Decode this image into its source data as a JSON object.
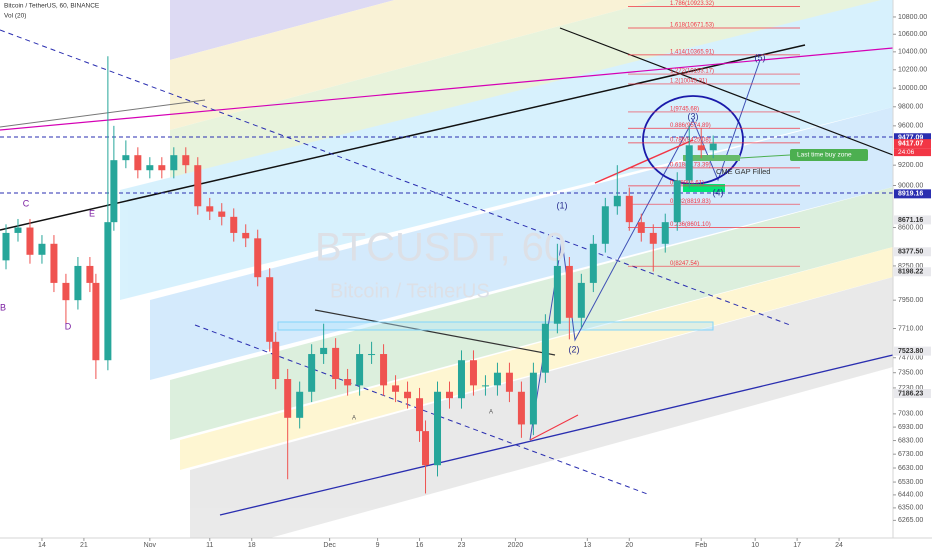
{
  "chart_data": {
    "type": "candlestick",
    "header": "Bitcoin / TetherUS, 60, BINANCE",
    "indicator": "Vol (20)",
    "watermark": {
      "symbol": "BTCUSDT, 60",
      "name": "Bitcoin / TetherUS"
    },
    "log_scale": true,
    "grid": false,
    "up_color": "#26a69a",
    "down_color": "#ef5350",
    "xlim": [
      "2019-10-07",
      "2020-03-04"
    ],
    "ylim": [
      6200,
      11000
    ],
    "xticks": [
      {
        "value": "2019-10-14",
        "label": "14"
      },
      {
        "value": "2019-10-21",
        "label": "21"
      },
      {
        "value": "2019-11-01",
        "label": "Nov"
      },
      {
        "value": "2019-11-11",
        "label": "11"
      },
      {
        "value": "2019-11-18",
        "label": "18"
      },
      {
        "value": "2019-12-01",
        "label": "Dec"
      },
      {
        "value": "2019-12-09",
        "label": "9"
      },
      {
        "value": "2019-12-16",
        "label": "16"
      },
      {
        "value": "2019-12-23",
        "label": "23"
      },
      {
        "value": "2020-01-01",
        "label": "2020"
      },
      {
        "value": "2020-01-13",
        "label": "13"
      },
      {
        "value": "2020-01-20",
        "label": "20"
      },
      {
        "value": "2020-02-01",
        "label": "Feb"
      },
      {
        "value": "2020-02-10",
        "label": "10"
      },
      {
        "value": "2020-02-17",
        "label": "17"
      },
      {
        "value": "2020-02-24",
        "label": "24"
      }
    ],
    "yticks": [
      {
        "value": 10800,
        "label": "10800.00"
      },
      {
        "value": 10600,
        "label": "10600.00"
      },
      {
        "value": 10400,
        "label": "10400.00"
      },
      {
        "value": 10200,
        "label": "10200.00"
      },
      {
        "value": 10000,
        "label": "10000.00"
      },
      {
        "value": 9800,
        "label": "9800.00"
      },
      {
        "value": 9600,
        "label": "9600.00"
      },
      {
        "value": 9200,
        "label": "9200.00"
      },
      {
        "value": 9000,
        "label": "9000.00"
      },
      {
        "value": 8600,
        "label": "8600.00"
      },
      {
        "value": 8250,
        "label": "8250.00"
      },
      {
        "value": 7950,
        "label": "7950.00"
      },
      {
        "value": 7710,
        "label": "7710.00"
      },
      {
        "value": 7470,
        "label": "7470.00"
      },
      {
        "value": 7350,
        "label": "7350.00"
      },
      {
        "value": 7230,
        "label": "7230.00"
      },
      {
        "value": 7030,
        "label": "7030.00"
      },
      {
        "value": 6930,
        "label": "6930.00"
      },
      {
        "value": 6830,
        "label": "6830.00"
      },
      {
        "value": 6730,
        "label": "6730.00"
      },
      {
        "value": 6630,
        "label": "6630.00"
      },
      {
        "value": 6530,
        "label": "6530.00"
      },
      {
        "value": 6440,
        "label": "6440.00"
      },
      {
        "value": 6350,
        "label": "6350.00"
      },
      {
        "value": 6265,
        "label": "6265.00"
      }
    ],
    "price_markers": [
      {
        "value": 9477.09,
        "label": "9477.09",
        "color": "#2a2eb0"
      },
      {
        "value": 9417.07,
        "label": "9417.07",
        "color": "#f23645"
      },
      {
        "value": 8919.16,
        "label": "8919.16",
        "color": "#2a2eb0"
      },
      {
        "value": 8671.16,
        "label": "8671.16",
        "color": "#e8e8ec"
      },
      {
        "value": 8377.5,
        "label": "8377.50",
        "color": "#e8e8ec"
      },
      {
        "value": 8198.22,
        "label": "8198.22",
        "color": "#e8e8ec"
      },
      {
        "value": 7523.8,
        "label": "7523.80",
        "color": "#e8e8ec"
      },
      {
        "value": 7186.23,
        "label": "7186.23",
        "color": "#e8e8ec"
      }
    ],
    "countdown": "24:06",
    "fib_levels": [
      {
        "price": 10923.32,
        "label": "1.786(10923.32)"
      },
      {
        "price": 10671.53,
        "label": "1.618(10671.53)"
      },
      {
        "price": 10365.91,
        "label": "1.414(10365.91)"
      },
      {
        "price": 10153.17,
        "label": "1.272(10153.17)"
      },
      {
        "price": 10045.31,
        "label": "1.2(10045.31)"
      },
      {
        "price": 9745.68,
        "label": "1(9745.68)"
      },
      {
        "price": 9574.89,
        "label": "0.886(9574.89)"
      },
      {
        "price": 9425.08,
        "label": "0.786(9425.08)"
      },
      {
        "price": 9173.39,
        "label": "0.618(9173.39)"
      },
      {
        "price": 8996.61,
        "label": "0.5(8996.61)"
      },
      {
        "price": 8819.83,
        "label": "0.382(8819.83)"
      },
      {
        "price": 8601.1,
        "label": "0.236(8601.10)"
      },
      {
        "price": 8247.54,
        "label": "0(8247.54)"
      }
    ],
    "wave_labels": [
      "(1)",
      "(2)",
      "(3)",
      "(4)",
      "(5)",
      "B",
      "C",
      "D",
      "E",
      "A",
      "A"
    ],
    "notes": [
      "Last time buy zone",
      "CME GAP Filled"
    ],
    "x": [
      "2019-10-08",
      "2019-10-10",
      "2019-10-12",
      "2019-10-14",
      "2019-10-16",
      "2019-10-18",
      "2019-10-20",
      "2019-10-22",
      "2019-10-23",
      "2019-10-25",
      "2019-10-26",
      "2019-10-28",
      "2019-10-30",
      "2019-11-01",
      "2019-11-03",
      "2019-11-05",
      "2019-11-07",
      "2019-11-09",
      "2019-11-11",
      "2019-11-13",
      "2019-11-15",
      "2019-11-17",
      "2019-11-19",
      "2019-11-21",
      "2019-11-22",
      "2019-11-24",
      "2019-11-26",
      "2019-11-28",
      "2019-11-30",
      "2019-12-02",
      "2019-12-04",
      "2019-12-06",
      "2019-12-08",
      "2019-12-10",
      "2019-12-12",
      "2019-12-14",
      "2019-12-16",
      "2019-12-17",
      "2019-12-19",
      "2019-12-21",
      "2019-12-23",
      "2019-12-25",
      "2019-12-27",
      "2019-12-29",
      "2019-12-31",
      "2020-01-02",
      "2020-01-04",
      "2020-01-06",
      "2020-01-08",
      "2020-01-10",
      "2020-01-12",
      "2020-01-14",
      "2020-01-16",
      "2020-01-18",
      "2020-01-20",
      "2020-01-22",
      "2020-01-24",
      "2020-01-26",
      "2020-01-28",
      "2020-01-30",
      "2020-02-01",
      "2020-02-03"
    ],
    "open": [
      8300,
      8550,
      8600,
      8350,
      8450,
      8100,
      7950,
      8250,
      8100,
      7450,
      8650,
      9250,
      9300,
      9150,
      9200,
      9150,
      9300,
      9200,
      8800,
      8750,
      8700,
      8550,
      8500,
      8150,
      7600,
      7300,
      7000,
      7200,
      7500,
      7550,
      7300,
      7250,
      7500,
      7500,
      7250,
      7200,
      7150,
      6900,
      6650,
      7200,
      7150,
      7450,
      7250,
      7250,
      7350,
      7200,
      6950,
      7350,
      7750,
      8250,
      7800,
      8100,
      8450,
      8800,
      8900,
      8650,
      8550,
      8450,
      8650,
      9050,
      9400,
      9350
    ],
    "high": [
      8630,
      8680,
      8680,
      8530,
      8530,
      8180,
      8330,
      8330,
      8180,
      10350,
      9600,
      9450,
      9380,
      9280,
      9280,
      9380,
      9380,
      9280,
      8880,
      8830,
      8780,
      8630,
      8580,
      8230,
      7680,
      7380,
      7280,
      7580,
      7750,
      7630,
      7380,
      7580,
      7600,
      7580,
      7330,
      7280,
      7230,
      6980,
      7280,
      7280,
      7530,
      7530,
      7330,
      7430,
      7430,
      7280,
      7430,
      7830,
      8450,
      8330,
      8180,
      8530,
      8880,
      9200,
      8980,
      8730,
      8630,
      8730,
      9130,
      9600,
      9580,
      9500
    ],
    "low": [
      8220,
      8470,
      8270,
      8270,
      8020,
      7750,
      7870,
      8020,
      7300,
      7370,
      8570,
      9170,
      9070,
      9070,
      9070,
      9070,
      9120,
      8720,
      8670,
      8620,
      8470,
      8420,
      8070,
      7520,
      7220,
      6550,
      6920,
      7120,
      7420,
      7220,
      7170,
      7170,
      7420,
      7170,
      7120,
      7070,
      6820,
      6450,
      6570,
      7070,
      7070,
      7170,
      7170,
      7170,
      7120,
      6850,
      6870,
      7270,
      7670,
      7620,
      7720,
      8020,
      8370,
      8720,
      8570,
      8470,
      8200,
      8370,
      8570,
      8970,
      9270,
      9270
    ],
    "close": [
      8550,
      8600,
      8350,
      8450,
      8100,
      7950,
      8250,
      8100,
      7450,
      8650,
      9250,
      9300,
      9150,
      9200,
      9150,
      9300,
      9200,
      8800,
      8750,
      8700,
      8550,
      8500,
      8150,
      7600,
      7300,
      7000,
      7200,
      7500,
      7550,
      7300,
      7250,
      7500,
      7500,
      7250,
      7200,
      7150,
      6900,
      6650,
      7200,
      7150,
      7450,
      7250,
      7250,
      7350,
      7200,
      6950,
      7350,
      7750,
      8250,
      7800,
      8100,
      8450,
      8800,
      8900,
      8650,
      8550,
      8450,
      8650,
      9050,
      9400,
      9350,
      9417
    ]
  }
}
